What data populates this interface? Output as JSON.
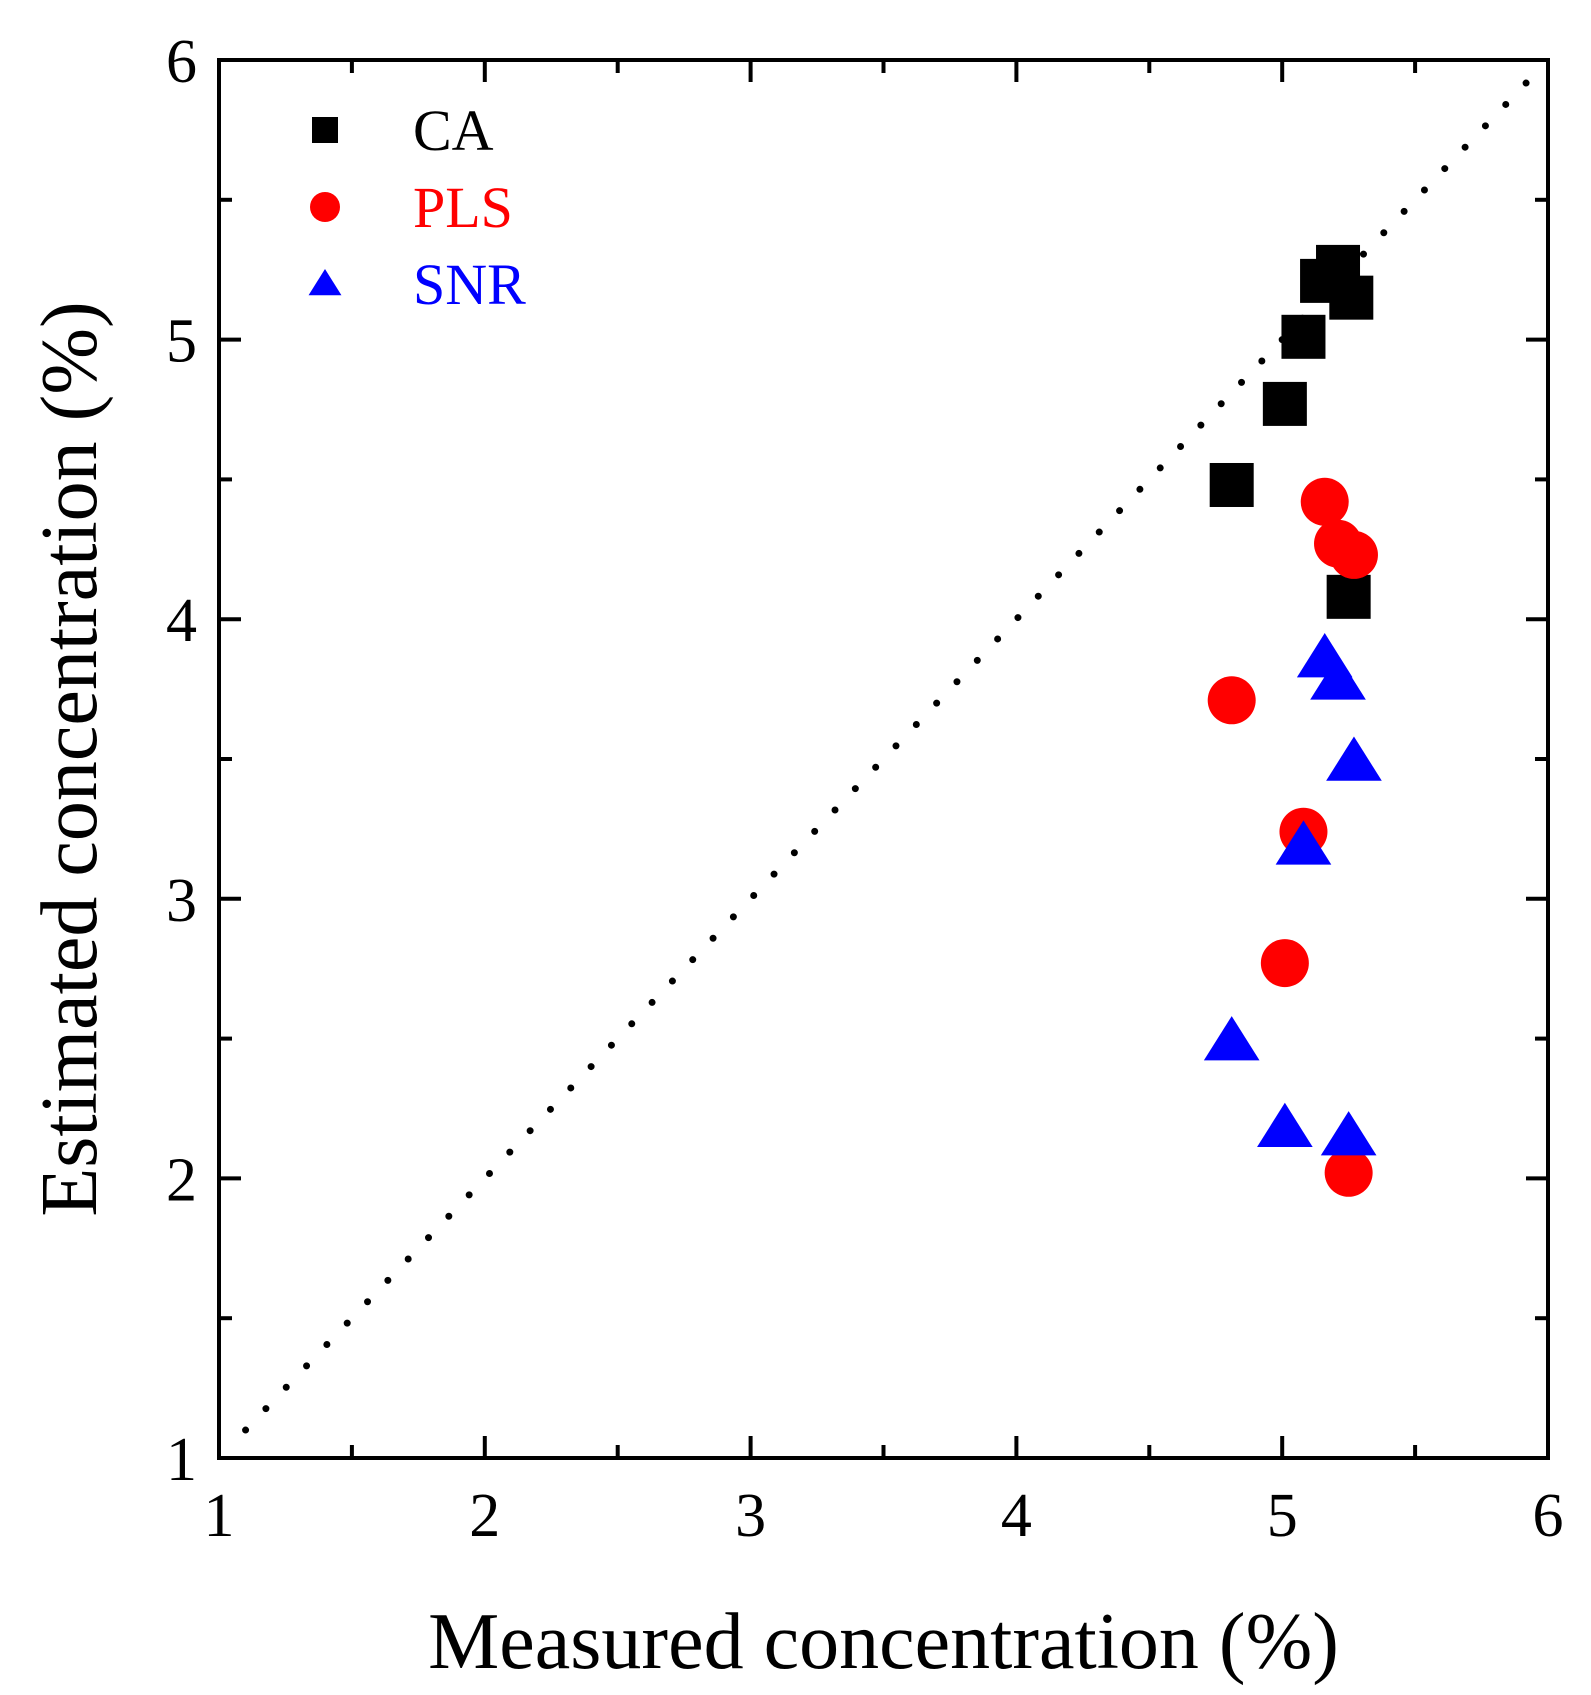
{
  "chart_data": {
    "type": "scatter",
    "title": "",
    "xlabel": "Measured concentration (%)",
    "ylabel": "Estimated concentration (%)",
    "xlim": [
      1,
      6
    ],
    "ylim": [
      1,
      6
    ],
    "xticks": [
      1,
      2,
      3,
      4,
      5,
      6
    ],
    "yticks": [
      1,
      2,
      3,
      4,
      5,
      6
    ],
    "x_minor_step": 0.5,
    "y_minor_step": 0.5,
    "grid": false,
    "legend_position": "top-left",
    "reference_line": {
      "style": "dotted",
      "from": [
        1.1,
        1.1
      ],
      "to": [
        5.95,
        5.95
      ],
      "color": "#000000"
    },
    "series": [
      {
        "name": "CA",
        "marker": "square",
        "color": "#000000",
        "points": [
          [
            4.81,
            4.48
          ],
          [
            5.01,
            4.77
          ],
          [
            5.08,
            5.01
          ],
          [
            5.15,
            5.21
          ],
          [
            5.21,
            5.26
          ],
          [
            5.26,
            5.15
          ],
          [
            5.25,
            4.08
          ]
        ]
      },
      {
        "name": "PLS",
        "marker": "circle",
        "color": "#ff0000",
        "points": [
          [
            4.81,
            3.71
          ],
          [
            5.01,
            2.77
          ],
          [
            5.08,
            3.24
          ],
          [
            5.16,
            4.42
          ],
          [
            5.21,
            4.27
          ],
          [
            5.27,
            4.23
          ],
          [
            5.25,
            2.02
          ]
        ]
      },
      {
        "name": "SNR",
        "marker": "triangle",
        "color": "#0000ff",
        "points": [
          [
            4.81,
            2.49
          ],
          [
            5.01,
            2.18
          ],
          [
            5.08,
            3.19
          ],
          [
            5.16,
            3.86
          ],
          [
            5.21,
            3.78
          ],
          [
            5.27,
            3.49
          ],
          [
            5.25,
            2.15
          ]
        ]
      }
    ]
  }
}
